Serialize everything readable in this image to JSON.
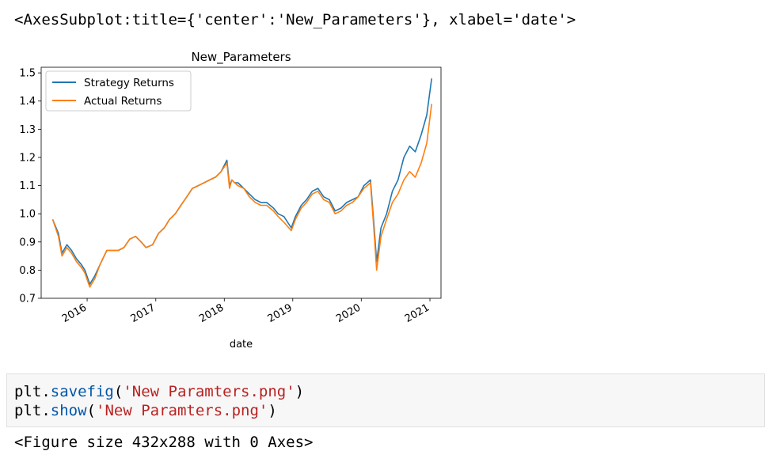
{
  "output_repr": "<AxesSubplot:title={'center':'New_Parameters'}, xlabel='date'>",
  "code_lines": [
    {
      "obj": "plt",
      "dot": ".",
      "fn": "savefig",
      "open": "(",
      "arg": "'New Paramters.png'",
      "close": ")"
    },
    {
      "obj": "plt",
      "dot": ".",
      "fn": "show",
      "open": "(",
      "arg": "'New Paramters.png'",
      "close": ")"
    }
  ],
  "figure_output": "<Figure size 432x288 with 0 Axes>",
  "colors": {
    "strategy": "#1f77b4",
    "actual": "#ff7f0e"
  },
  "chart_data": {
    "type": "line",
    "title": "New_Parameters",
    "xlabel": "date",
    "ylabel": "",
    "x_ticks": [
      "2016",
      "2017",
      "2018",
      "2019",
      "2020",
      "2021"
    ],
    "y_ticks": [
      "0.7",
      "0.8",
      "0.9",
      "1.0",
      "1.1",
      "1.2",
      "1.3",
      "1.4",
      "1.5"
    ],
    "xlim": [
      "2015-05-01",
      "2021-03-01"
    ],
    "ylim": [
      0.7,
      1.52
    ],
    "legend_position": "upper-left",
    "x": [
      "2015-07-01",
      "2015-08-01",
      "2015-08-20",
      "2015-09-15",
      "2015-10-10",
      "2015-11-05",
      "2015-12-01",
      "2015-12-20",
      "2016-01-15",
      "2016-02-11",
      "2016-03-10",
      "2016-04-15",
      "2016-05-15",
      "2016-06-15",
      "2016-07-15",
      "2016-08-15",
      "2016-09-15",
      "2016-10-15",
      "2016-11-10",
      "2016-12-15",
      "2017-01-15",
      "2017-02-15",
      "2017-03-15",
      "2017-04-15",
      "2017-05-15",
      "2017-06-15",
      "2017-07-15",
      "2017-08-15",
      "2017-09-15",
      "2017-10-15",
      "2017-11-15",
      "2017-12-15",
      "2018-01-15",
      "2018-01-29",
      "2018-02-10",
      "2018-02-25",
      "2018-03-15",
      "2018-04-15",
      "2018-05-15",
      "2018-06-15",
      "2018-07-15",
      "2018-08-15",
      "2018-09-20",
      "2018-10-15",
      "2018-11-15",
      "2018-12-24",
      "2019-01-15",
      "2019-02-15",
      "2019-03-15",
      "2019-04-15",
      "2019-05-15",
      "2019-06-15",
      "2019-07-15",
      "2019-08-15",
      "2019-09-15",
      "2019-10-15",
      "2019-11-15",
      "2019-12-15",
      "2020-01-15",
      "2020-02-19",
      "2020-03-10",
      "2020-03-23",
      "2020-04-15",
      "2020-05-15",
      "2020-06-15",
      "2020-07-15",
      "2020-08-15",
      "2020-09-15",
      "2020-10-15",
      "2020-11-15",
      "2020-12-15",
      "2021-01-10"
    ],
    "series": [
      {
        "name": "Strategy Returns",
        "color": "#1f77b4",
        "values": [
          0.98,
          0.93,
          0.86,
          0.89,
          0.87,
          0.84,
          0.82,
          0.8,
          0.75,
          0.78,
          0.82,
          0.87,
          0.87,
          0.87,
          0.88,
          0.91,
          0.92,
          0.9,
          0.88,
          0.89,
          0.93,
          0.95,
          0.98,
          1.0,
          1.03,
          1.06,
          1.09,
          1.1,
          1.11,
          1.12,
          1.13,
          1.15,
          1.19,
          1.1,
          1.12,
          1.11,
          1.11,
          1.09,
          1.07,
          1.05,
          1.04,
          1.04,
          1.02,
          1.0,
          0.99,
          0.95,
          0.99,
          1.03,
          1.05,
          1.08,
          1.09,
          1.06,
          1.05,
          1.01,
          1.02,
          1.04,
          1.05,
          1.06,
          1.1,
          1.12,
          0.95,
          0.83,
          0.95,
          1.0,
          1.08,
          1.12,
          1.2,
          1.24,
          1.22,
          1.28,
          1.35,
          1.48
        ]
      },
      {
        "name": "Actual Returns",
        "color": "#ff7f0e",
        "values": [
          0.98,
          0.92,
          0.85,
          0.88,
          0.86,
          0.83,
          0.81,
          0.79,
          0.74,
          0.77,
          0.82,
          0.87,
          0.87,
          0.87,
          0.88,
          0.91,
          0.92,
          0.9,
          0.88,
          0.89,
          0.93,
          0.95,
          0.98,
          1.0,
          1.03,
          1.06,
          1.09,
          1.1,
          1.11,
          1.12,
          1.13,
          1.15,
          1.18,
          1.09,
          1.12,
          1.11,
          1.1,
          1.09,
          1.06,
          1.04,
          1.03,
          1.03,
          1.01,
          0.99,
          0.97,
          0.94,
          0.98,
          1.02,
          1.04,
          1.07,
          1.08,
          1.05,
          1.04,
          1.0,
          1.01,
          1.03,
          1.04,
          1.06,
          1.09,
          1.11,
          0.93,
          0.8,
          0.92,
          0.98,
          1.04,
          1.07,
          1.12,
          1.15,
          1.13,
          1.18,
          1.25,
          1.39
        ]
      }
    ]
  }
}
